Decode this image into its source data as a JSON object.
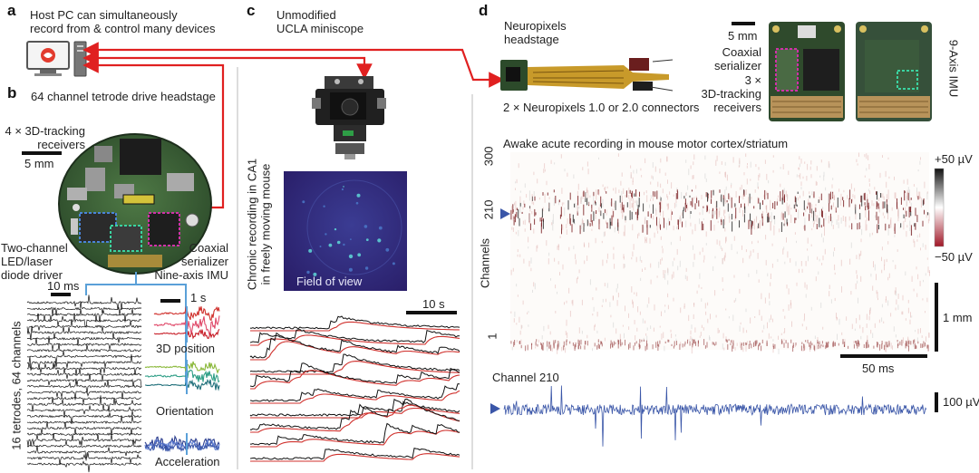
{
  "panel_a": {
    "letter": "a",
    "host_text_line1": "Host PC can simultaneously",
    "host_text_line2": "record from & control many devices"
  },
  "panel_b": {
    "letter": "b",
    "title": "64 channel tetrode drive headstage",
    "receivers_line1": "4 × 3D-tracking",
    "receivers_line2": "receivers",
    "scalebar_mm": "5 mm",
    "led_line1": "Two-channel",
    "led_line2": "LED/laser",
    "led_line3": "diode driver",
    "serializer_line1": "Coaxial",
    "serializer_line2": "serializer",
    "imu": "Nine-axis IMU",
    "scalebar_ms": "10 ms",
    "scalebar_s": "1 s",
    "traces_ylabel": "16 tetrodes, 64 channels",
    "label_3d": "3D position",
    "label_orientation": "Orientation",
    "label_acceleration": "Acceleration"
  },
  "panel_c": {
    "letter": "c",
    "title_line1": "Unmodified",
    "title_line2": "UCLA miniscope",
    "vertical_line1": "Chronic recording in CA1",
    "vertical_line2": "in freely moving mouse",
    "fov": "Field of view",
    "scalebar_s": "10 s"
  },
  "panel_d": {
    "letter": "d",
    "neuropixels_line1": "Neuropixels",
    "neuropixels_line2": "headstage",
    "connectors": "2 × Neuropixels 1.0 or 2.0 connectors",
    "scalebar_mm": "5 mm",
    "serializer_line1": "Coaxial",
    "serializer_line2": "serializer",
    "receivers_line1": "3 ×",
    "receivers_line2": "3D-tracking",
    "receivers_line3": "receivers",
    "imu_vertical": "9-Axis IMU",
    "raster_title": "Awake acute recording in mouse motor cortex/striatum",
    "ytick_top": "300",
    "ytick_mid": "210",
    "ytick_bottom": "1",
    "ylabel": "Channels",
    "cbar_top": "+50 µV",
    "cbar_bottom": "−50 µV",
    "scalebar_vertical": "1 mm",
    "scalebar_ms": "50 ms",
    "channel_label": "Channel 210",
    "amp_scalebar": "100 µV"
  },
  "colors": {
    "arrow_red": "#e02020",
    "link_blue": "#5aa0d8",
    "trace_black": "#111111",
    "trace_red": "#d0312d",
    "marker_blue": "#3a56a8",
    "raster_dark": "#7a1e22"
  }
}
